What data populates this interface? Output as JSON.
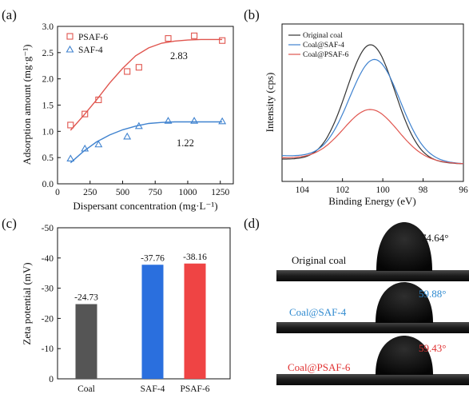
{
  "panels": {
    "a": "(a)",
    "b": "(b)",
    "c": "(c)",
    "d": "(d)"
  },
  "chart_data": [
    {
      "id": "a",
      "type": "scatter",
      "xlabel": "Dispersant concentration (mg·L⁻¹)",
      "ylabel": "Adsorption amount (mg·g⁻¹)",
      "xlim": [
        0,
        1350
      ],
      "ylim": [
        0,
        3.0
      ],
      "xticks": [
        0,
        250,
        500,
        750,
        1000,
        1250
      ],
      "yticks": [
        0.0,
        0.5,
        1.0,
        1.5,
        2.0,
        2.5,
        3.0
      ],
      "grid": false,
      "legend": "top-left",
      "series": [
        {
          "name": "PSAF-6",
          "marker": "square",
          "color": "#e0554e",
          "x": [
            100,
            210,
            315,
            535,
            625,
            850,
            1050,
            1265
          ],
          "y": [
            1.12,
            1.33,
            1.6,
            2.14,
            2.22,
            2.77,
            2.82,
            2.73
          ],
          "fit": {
            "x": [
              100,
              200,
              300,
              400,
              500,
              600,
              700,
              800,
              900,
              1000,
              1100,
              1200,
              1265
            ],
            "y": [
              1.02,
              1.3,
              1.6,
              1.92,
              2.2,
              2.44,
              2.59,
              2.68,
              2.72,
              2.74,
              2.75,
              2.75,
              2.75
            ]
          },
          "annotation": "2.83"
        },
        {
          "name": "SAF-4",
          "marker": "triangle",
          "color": "#3f82cf",
          "x": [
            100,
            210,
            315,
            535,
            625,
            850,
            1050,
            1265
          ],
          "y": [
            0.48,
            0.67,
            0.75,
            0.9,
            1.1,
            1.2,
            1.2,
            1.19
          ],
          "fit": {
            "x": [
              100,
              200,
              300,
              400,
              500,
              600,
              700,
              800,
              900,
              1000,
              1100,
              1200,
              1265
            ],
            "y": [
              0.4,
              0.62,
              0.8,
              0.93,
              1.03,
              1.1,
              1.15,
              1.17,
              1.18,
              1.18,
              1.18,
              1.18,
              1.18
            ]
          },
          "annotation": "1.22"
        }
      ]
    },
    {
      "id": "b",
      "type": "line",
      "xlabel": "Binding Energy (eV)",
      "ylabel": "Intensity (cps)",
      "xlim": [
        105,
        96
      ],
      "xticks": [
        104,
        102,
        100,
        98,
        96
      ],
      "legend": "top-left",
      "series": [
        {
          "name": "Original coal",
          "color": "#333333",
          "peak": 100.6,
          "height": 1.0,
          "width": 1.2,
          "baseline": 0.04
        },
        {
          "name": "Coal@SAF-4",
          "color": "#3f82cf",
          "peak": 100.4,
          "height": 0.86,
          "width": 1.25,
          "baseline": 0.07
        },
        {
          "name": "Coal@PSAF-6",
          "color": "#e0554e",
          "peak": 100.6,
          "height": 0.44,
          "width": 1.35,
          "baseline": 0.05
        }
      ]
    },
    {
      "id": "c",
      "type": "bar",
      "categories": [
        "Coal",
        "SAF-4",
        "PSAF-6"
      ],
      "values": [
        -24.73,
        -37.76,
        -38.16
      ],
      "labels": [
        "-24.73",
        "-37.76",
        "-38.16"
      ],
      "colors": [
        "#555555",
        "#2a6fde",
        "#ef4444"
      ],
      "ylabel": "Zeta potential (mV)",
      "ylim": [
        0,
        -50
      ],
      "yticks": [
        0,
        -10,
        -20,
        -30,
        -40,
        -50
      ],
      "grid": false
    }
  ],
  "droplets": [
    {
      "name": "Original coal",
      "angle": "74.64°",
      "color": "#111111"
    },
    {
      "name": "Coal@SAF-4",
      "angle": "59.88°",
      "color": "#2f8ad0"
    },
    {
      "name": "Coal@PSAF-6",
      "angle": "59.43°",
      "color": "#e03030"
    }
  ]
}
